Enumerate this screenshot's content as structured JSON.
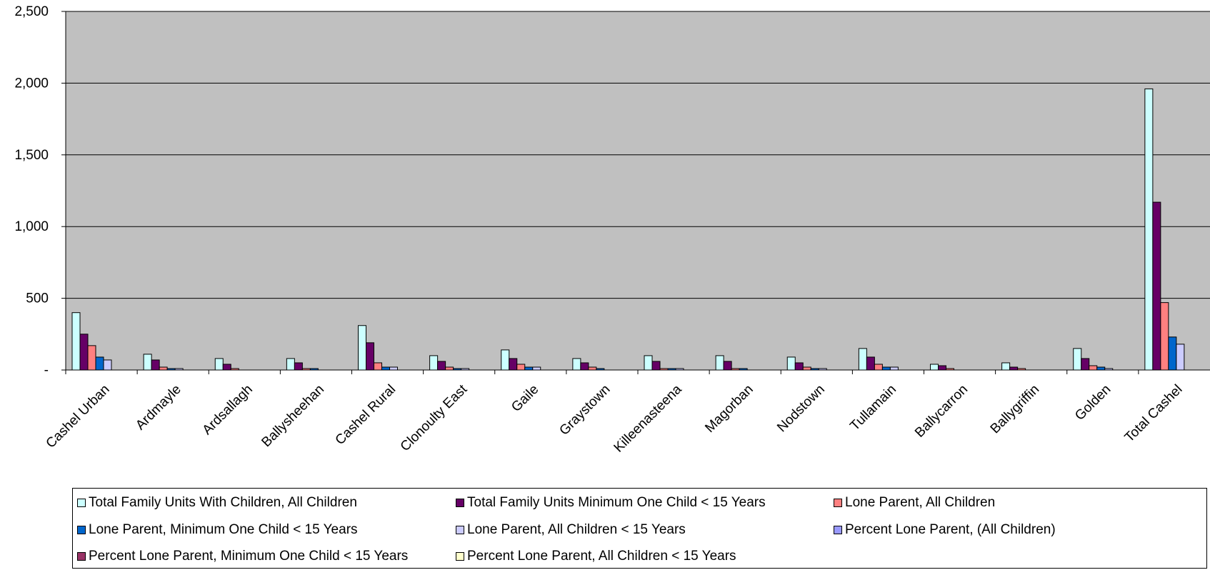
{
  "chart_data": {
    "type": "bar",
    "categories": [
      "Cashel Urban",
      "Ardmayle",
      "Ardsallagh",
      "Ballysheehan",
      "Cashel Rural",
      "Clonoulty East",
      "Gaile",
      "Graystown",
      "Killeenasteena",
      "Magorban",
      "Nodstown",
      "Tullamain",
      "Ballycarron",
      "Ballygriffin",
      "Golden",
      "Total Cashel"
    ],
    "ylim": [
      0,
      2500
    ],
    "yticks": [
      0,
      500,
      1000,
      1500,
      2000,
      2500
    ],
    "ytick_labels": [
      "-",
      "500",
      "1,000",
      "1,500",
      "2,000",
      "2,500"
    ],
    "grid": true,
    "legend_position": "bottom",
    "plot_background": "#c0c0c0",
    "series": [
      {
        "name": "Total Family Units With Children, All Children",
        "color": "#ccffff",
        "values": [
          400,
          110,
          80,
          80,
          310,
          100,
          140,
          80,
          100,
          100,
          90,
          150,
          40,
          50,
          150,
          1960
        ]
      },
      {
        "name": "Total Family Units Minimum One Child < 15 Years",
        "color": "#660066",
        "values": [
          250,
          70,
          40,
          50,
          190,
          60,
          80,
          50,
          60,
          60,
          50,
          90,
          30,
          20,
          80,
          1170
        ]
      },
      {
        "name": "Lone Parent, All Children",
        "color": "#ff8080",
        "values": [
          170,
          20,
          10,
          10,
          50,
          20,
          40,
          20,
          10,
          10,
          20,
          40,
          10,
          10,
          30,
          470
        ]
      },
      {
        "name": "Lone Parent, Minimum One Child < 15 Years",
        "color": "#0066cc",
        "values": [
          90,
          10,
          0,
          10,
          20,
          10,
          20,
          10,
          10,
          10,
          10,
          20,
          0,
          0,
          20,
          230
        ]
      },
      {
        "name": "Lone Parent, All Children < 15 Years",
        "color": "#ccccff",
        "values": [
          70,
          10,
          0,
          0,
          20,
          10,
          20,
          0,
          10,
          0,
          10,
          20,
          0,
          0,
          10,
          180
        ]
      },
      {
        "name": "Percent Lone Parent, (All Children)",
        "color": "#9999ff",
        "values": [
          0,
          0,
          0,
          0,
          0,
          0,
          0,
          0,
          0,
          0,
          0,
          0,
          0,
          0,
          0,
          0
        ]
      },
      {
        "name": "Percent Lone Parent, Minimum One Child < 15 Years",
        "color": "#993366",
        "values": [
          0,
          0,
          0,
          0,
          0,
          0,
          0,
          0,
          0,
          0,
          0,
          0,
          0,
          0,
          0,
          0
        ]
      },
      {
        "name": "Percent Lone Parent, All Children < 15 Years",
        "color": "#ffffcc",
        "values": [
          0,
          0,
          0,
          0,
          0,
          0,
          0,
          0,
          0,
          0,
          0,
          0,
          0,
          0,
          0,
          0
        ]
      }
    ]
  }
}
